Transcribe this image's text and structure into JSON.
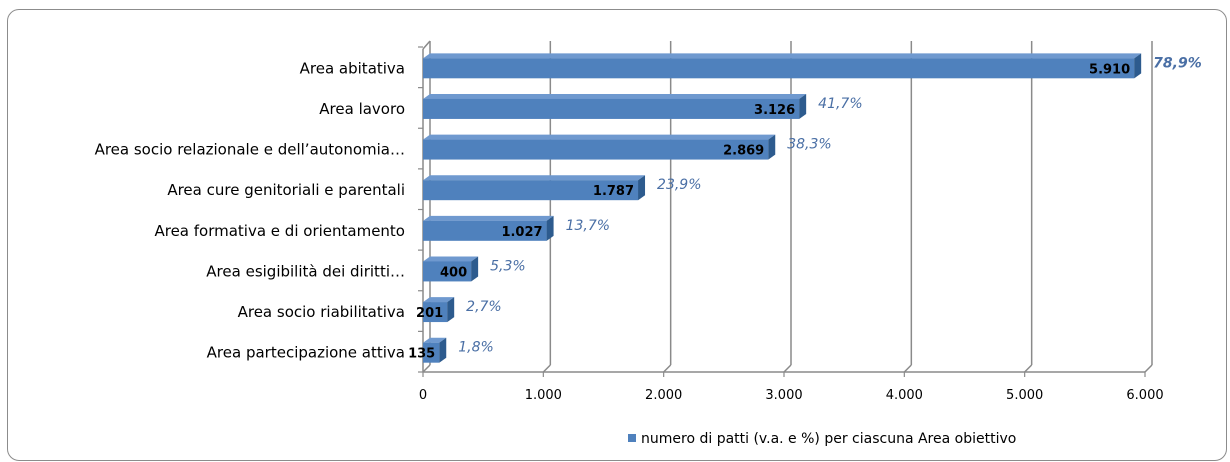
{
  "chart_data": {
    "type": "bar",
    "orientation": "horizontal",
    "categories": [
      "Area abitativa",
      "Area lavoro",
      "Area socio relazionale e dell’autonomia…",
      "Area cure genitoriali e parentali",
      "Area formativa e di orientamento",
      "Area esigibilità dei diritti…",
      "Area socio riabilitativa",
      "Area partecipazione attiva"
    ],
    "series": [
      {
        "name": "numero di patti (v.a. e %) per ciascuna Area obiettivo",
        "values": [
          5910,
          3126,
          2869,
          1787,
          1027,
          400,
          201,
          135
        ],
        "value_labels": [
          "5.910",
          "3.126",
          "2.869",
          "1.787",
          "1.027",
          "400",
          "201",
          "135"
        ],
        "percent_labels": [
          "78,9%",
          "41,7%",
          "38,3%",
          "23,9%",
          "13,7%",
          "5,3%",
          "2,7%",
          "1,8%"
        ]
      }
    ],
    "xlim": [
      0,
      6000
    ],
    "xticks": [
      0,
      1000,
      2000,
      3000,
      4000,
      5000,
      6000
    ],
    "xtick_labels": [
      "0",
      "1.000",
      "2.000",
      "3.000",
      "4.000",
      "5.000",
      "6.000"
    ],
    "grid": true,
    "legend_position": "bottom",
    "colors": {
      "bar_front": "#4f81bd",
      "bar_side": "#2d5b8e",
      "bar_top": "#6f99cf",
      "percent_text": "#4a6fa5"
    }
  }
}
